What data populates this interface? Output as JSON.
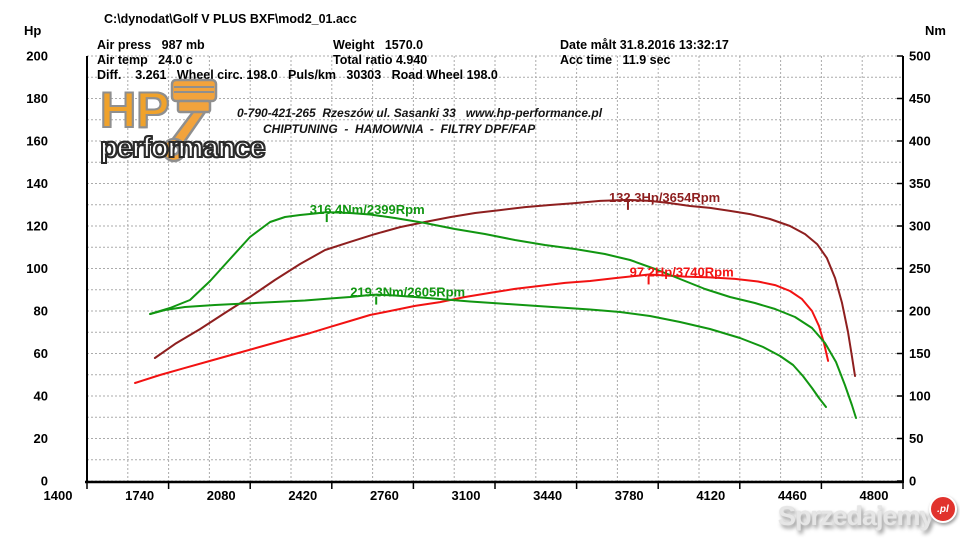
{
  "header": {
    "file_path": "C:\\dynodat\\Golf V PLUS BXF\\mod2_01.acc",
    "air_press": "Air press   987 mb",
    "air_temp": "Air temp   24.0 c",
    "weight": "Weight   1570.0",
    "total_ratio": "Total ratio 4.940",
    "date": "Date målt 31.8.2016 13:32:17",
    "acc_time": "Acc time   11.9 sec",
    "diff_line": "Diff.    3.261   Wheel circ. 198.0   Puls/km   30303   Road Wheel 198.0"
  },
  "logo": {
    "hp": "HP",
    "performance": "performance",
    "line1": "0-790-421-265  Rzeszów ul. Sasanki 33   www.hp-performance.pl",
    "line2": "CHIPTUNING  -  HAMOWNIA  -  FILTRY DPF/FAP"
  },
  "watermark": {
    "text": "Sprzedajemy",
    "badge": ".pl"
  },
  "chart_data": {
    "type": "line",
    "x_axis": {
      "min": 1400,
      "max": 4800,
      "ticks": [
        1400,
        1740,
        2080,
        2420,
        2760,
        3100,
        3440,
        3780,
        4120,
        4460,
        4800
      ]
    },
    "y_left": {
      "label": "Hp",
      "min": 0,
      "max": 200,
      "ticks": [
        0,
        20,
        40,
        60,
        80,
        100,
        120,
        140,
        160,
        180,
        200
      ]
    },
    "y_right": {
      "label": "Nm",
      "min": 0,
      "max": 500,
      "ticks": [
        0,
        50,
        100,
        150,
        200,
        250,
        300,
        350,
        400,
        450,
        500
      ]
    },
    "grid": {
      "color": "#ABABAB",
      "minor_x_step_rpm": 170,
      "minor_y_step_hp": 10
    },
    "series": [
      {
        "name": "power-modified",
        "axis": "left",
        "color": "#8E1F1F",
        "points": [
          [
            1683,
            57.9
          ],
          [
            1767,
            64.5
          ],
          [
            1871,
            71.5
          ],
          [
            1975,
            79.1
          ],
          [
            2079,
            86.6
          ],
          [
            2183,
            94.6
          ],
          [
            2288,
            102.1
          ],
          [
            2392,
            108.7
          ],
          [
            2496,
            112.5
          ],
          [
            2600,
            116.2
          ],
          [
            2704,
            119.5
          ],
          [
            2808,
            121.9
          ],
          [
            2913,
            124.2
          ],
          [
            3017,
            126.1
          ],
          [
            3121,
            127.5
          ],
          [
            3225,
            128.9
          ],
          [
            3329,
            129.9
          ],
          [
            3433,
            130.8
          ],
          [
            3538,
            131.8
          ],
          [
            3654,
            132.3
          ],
          [
            3746,
            131.8
          ],
          [
            3829,
            130.8
          ],
          [
            3913,
            129.4
          ],
          [
            3996,
            128.5
          ],
          [
            4079,
            127.1
          ],
          [
            4163,
            125.6
          ],
          [
            4246,
            123.3
          ],
          [
            4329,
            120.0
          ],
          [
            4392,
            116.2
          ],
          [
            4442,
            111.5
          ],
          [
            4483,
            104.9
          ],
          [
            4517,
            95.5
          ],
          [
            4546,
            83.8
          ],
          [
            4571,
            70.1
          ],
          [
            4587,
            58.8
          ],
          [
            4600,
            49.4
          ]
        ]
      },
      {
        "name": "power-stock",
        "axis": "left",
        "color": "#F21212",
        "points": [
          [
            1600,
            46.1
          ],
          [
            1704,
            49.9
          ],
          [
            1808,
            53.2
          ],
          [
            1913,
            56.5
          ],
          [
            2017,
            59.8
          ],
          [
            2121,
            63.1
          ],
          [
            2225,
            66.4
          ],
          [
            2329,
            69.6
          ],
          [
            2413,
            72.5
          ],
          [
            2496,
            75.3
          ],
          [
            2579,
            78.1
          ],
          [
            2663,
            80.0
          ],
          [
            2767,
            82.4
          ],
          [
            2871,
            84.2
          ],
          [
            2975,
            86.6
          ],
          [
            3079,
            88.5
          ],
          [
            3183,
            90.4
          ],
          [
            3288,
            91.8
          ],
          [
            3392,
            93.2
          ],
          [
            3496,
            94.1
          ],
          [
            3600,
            95.5
          ],
          [
            3704,
            96.7
          ],
          [
            3740,
            97.2
          ],
          [
            3892,
            96.2
          ],
          [
            3996,
            95.8
          ],
          [
            4100,
            95.1
          ],
          [
            4196,
            93.9
          ],
          [
            4267,
            92.2
          ],
          [
            4329,
            89.4
          ],
          [
            4379,
            85.6
          ],
          [
            4421,
            80.0
          ],
          [
            4450,
            72.9
          ],
          [
            4471,
            64.9
          ],
          [
            4488,
            56.5
          ]
        ]
      },
      {
        "name": "torque-modified",
        "axis": "right",
        "color": "#119611",
        "points": [
          [
            1663,
            196.5
          ],
          [
            1746,
            203.5
          ],
          [
            1829,
            212.9
          ],
          [
            1913,
            235.3
          ],
          [
            1996,
            261.2
          ],
          [
            2079,
            287.1
          ],
          [
            2163,
            304.7
          ],
          [
            2225,
            310.6
          ],
          [
            2288,
            312.9
          ],
          [
            2350,
            314.7
          ],
          [
            2399,
            316.4
          ],
          [
            2496,
            315.3
          ],
          [
            2579,
            313.5
          ],
          [
            2683,
            309.4
          ],
          [
            2808,
            303.5
          ],
          [
            2933,
            296.5
          ],
          [
            3058,
            290.6
          ],
          [
            3183,
            283.5
          ],
          [
            3308,
            277.6
          ],
          [
            3433,
            272.9
          ],
          [
            3558,
            267.1
          ],
          [
            3663,
            260.0
          ],
          [
            3767,
            249.4
          ],
          [
            3871,
            237.6
          ],
          [
            3975,
            225.9
          ],
          [
            4079,
            216.5
          ],
          [
            4183,
            209.4
          ],
          [
            4267,
            202.4
          ],
          [
            4350,
            192.9
          ],
          [
            4421,
            180.0
          ],
          [
            4475,
            162.4
          ],
          [
            4521,
            140.0
          ],
          [
            4558,
            112.9
          ],
          [
            4587,
            89.4
          ],
          [
            4604,
            74.1
          ]
        ]
      },
      {
        "name": "torque-stock",
        "axis": "right",
        "color": "#119611",
        "points": [
          [
            1663,
            196.5
          ],
          [
            1725,
            201.2
          ],
          [
            1808,
            204.7
          ],
          [
            1933,
            207.1
          ],
          [
            2058,
            208.8
          ],
          [
            2183,
            210.6
          ],
          [
            2308,
            212.4
          ],
          [
            2413,
            214.7
          ],
          [
            2496,
            216.5
          ],
          [
            2558,
            218.2
          ],
          [
            2605,
            219.3
          ],
          [
            2683,
            218.2
          ],
          [
            2767,
            216.5
          ],
          [
            2871,
            214.1
          ],
          [
            2996,
            211.2
          ],
          [
            3121,
            208.8
          ],
          [
            3246,
            206.5
          ],
          [
            3371,
            204.1
          ],
          [
            3496,
            201.8
          ],
          [
            3621,
            198.8
          ],
          [
            3746,
            194.1
          ],
          [
            3871,
            187.1
          ],
          [
            3996,
            178.8
          ],
          [
            4121,
            168.2
          ],
          [
            4217,
            157.6
          ],
          [
            4288,
            147.1
          ],
          [
            4342,
            136.5
          ],
          [
            4383,
            123.5
          ],
          [
            4421,
            109.4
          ],
          [
            4450,
            97.6
          ],
          [
            4479,
            87.1
          ]
        ]
      }
    ],
    "annotations": [
      {
        "text": "316.4Nm/2399Rpm",
        "rpm": 2399,
        "value": 316.4,
        "axis": "right",
        "color": "#119611",
        "label_dx": -17
      },
      {
        "text": "132.3Hp/3654Rpm",
        "rpm": 3654,
        "value": 132.3,
        "axis": "left",
        "color": "#8E1F1F",
        "label_dx": -19
      },
      {
        "text": "97.2Hp/3740Rpm",
        "rpm": 3740,
        "value": 97.2,
        "axis": "left",
        "color": "#F21212",
        "label_dx": -19
      },
      {
        "text": "219.3Nm/2605Rpm",
        "rpm": 2605,
        "value": 219.3,
        "axis": "right",
        "color": "#119611",
        "label_dx": -26
      }
    ]
  }
}
